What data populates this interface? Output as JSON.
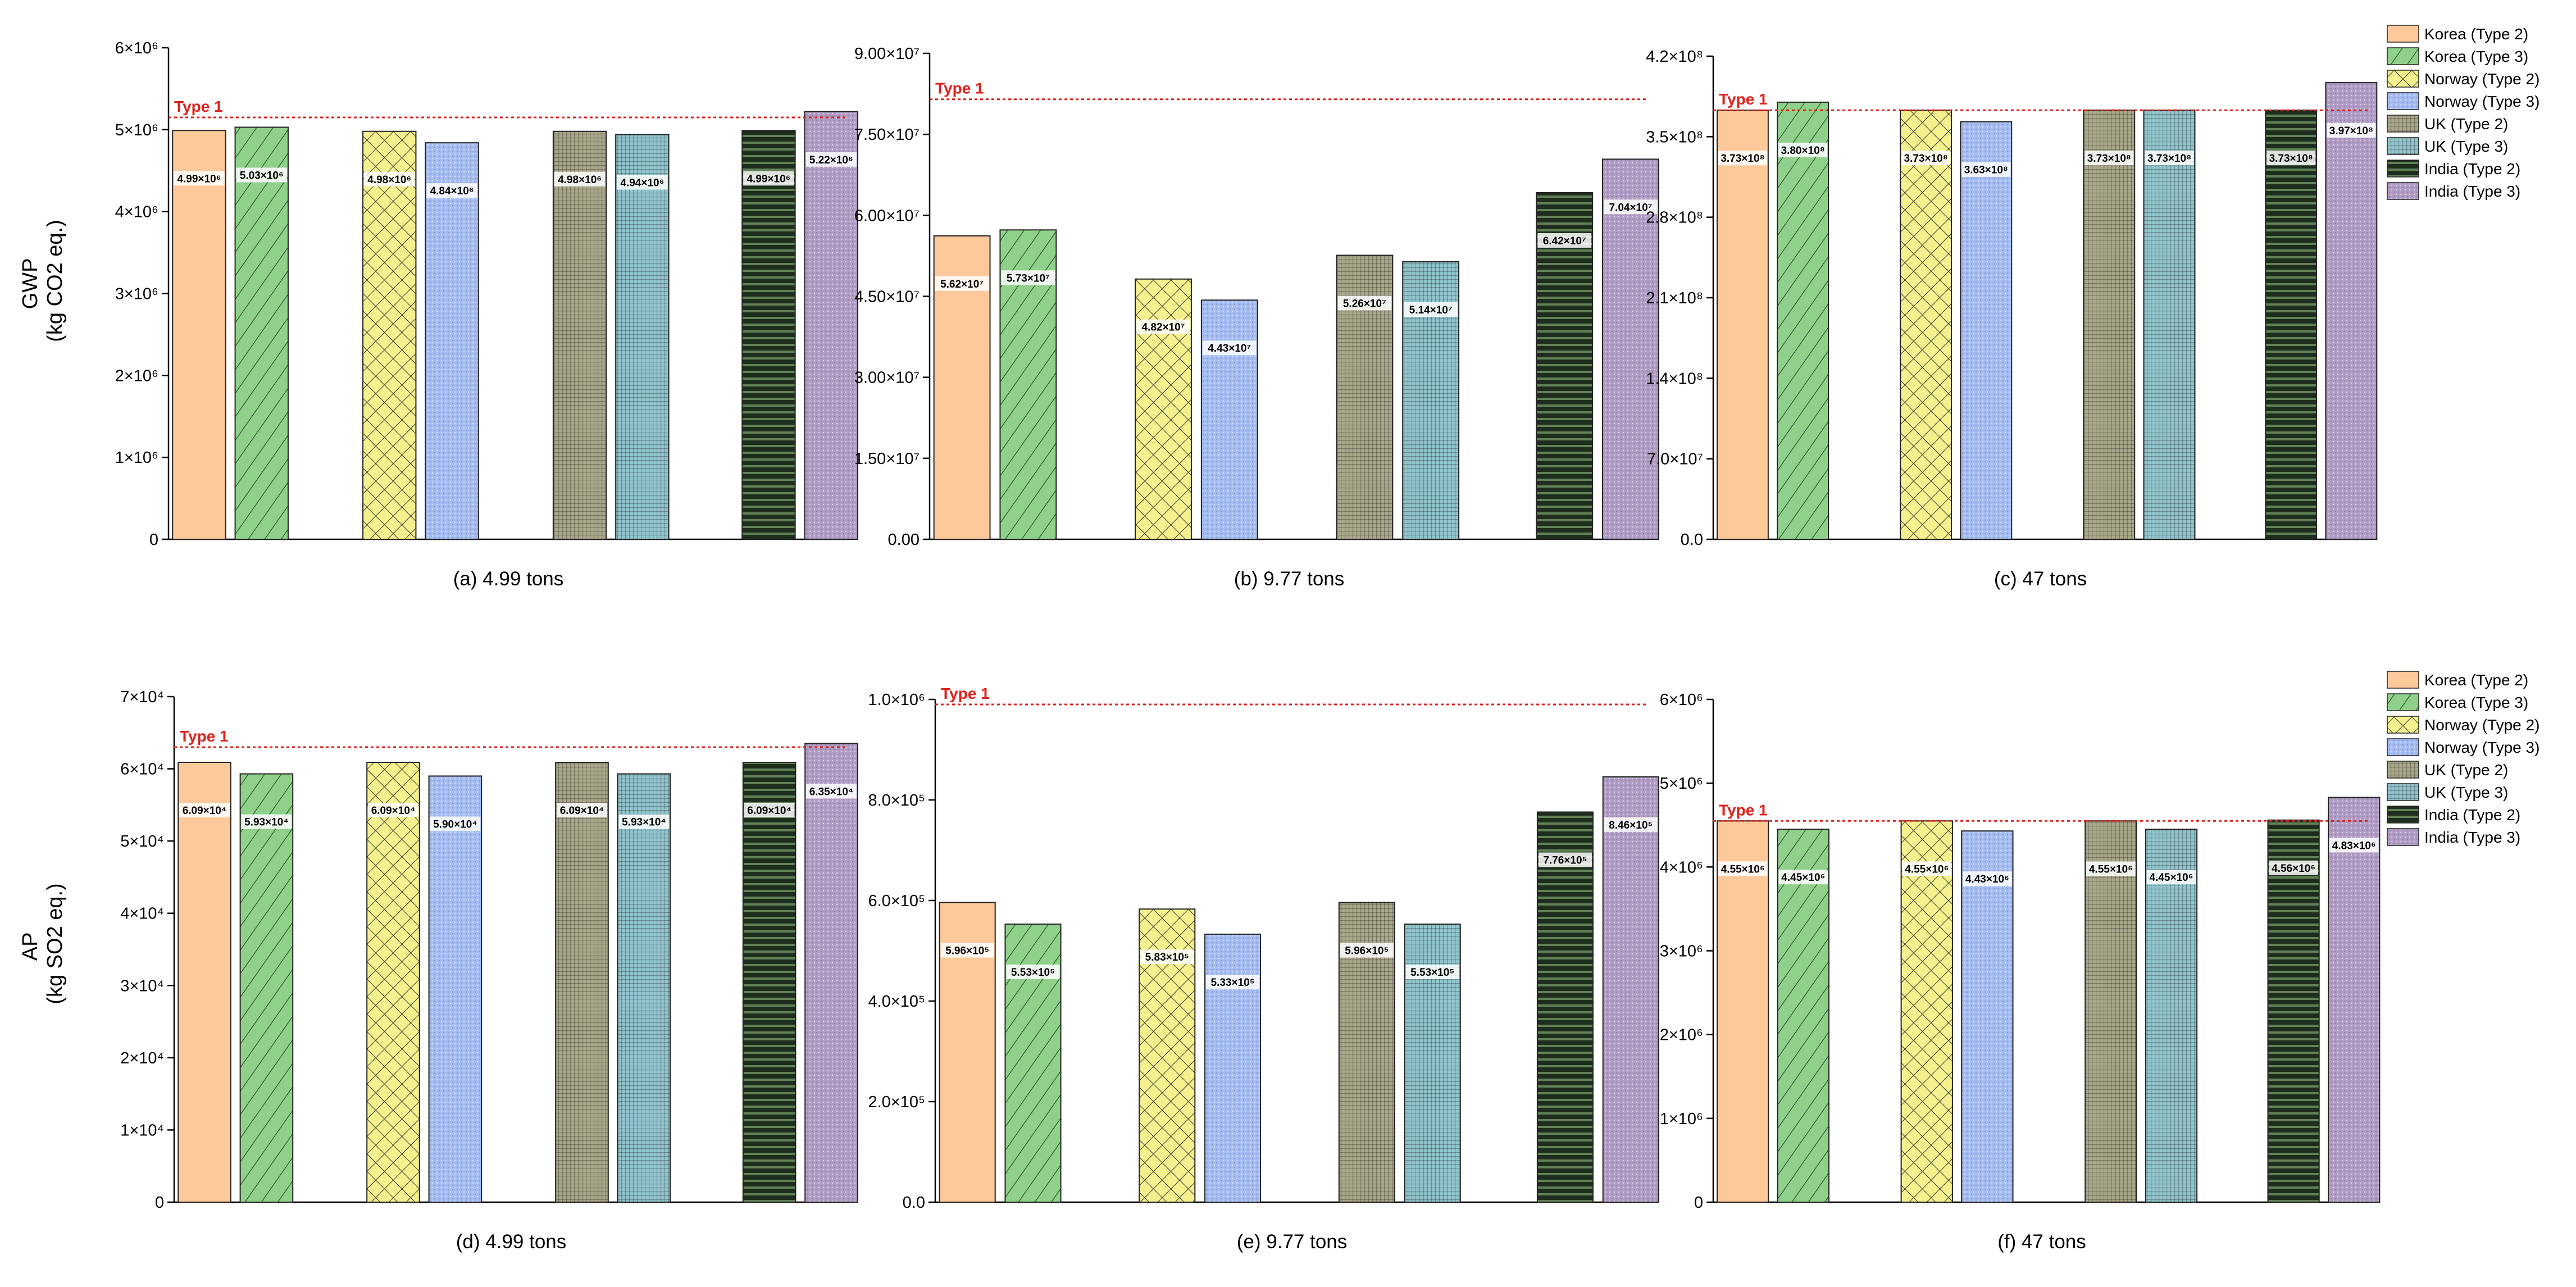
{
  "figure": {
    "rows": [
      {
        "ylabel_line1": "GWP",
        "ylabel_line2": "(kg CO2 eq.)"
      },
      {
        "ylabel_line1": "AP",
        "ylabel_line2": "(kg SO2 eq.)"
      }
    ]
  },
  "legend": {
    "entries": [
      {
        "label": "Korea (Type 2)",
        "color": "#fdc99b",
        "pattern": "solid"
      },
      {
        "label": "Korea (Type 3)",
        "color": "#8fd18b",
        "pattern": "diag"
      },
      {
        "label": "Norway (Type 2)",
        "color": "#f4f08e",
        "pattern": "cross"
      },
      {
        "label": "Norway (Type 3)",
        "color": "#a4bcf2",
        "pattern": "dots"
      },
      {
        "label": "UK (Type 2)",
        "color": "#a9a88a",
        "pattern": "grid"
      },
      {
        "label": "UK (Type 3)",
        "color": "#92c5cd",
        "pattern": "grid"
      },
      {
        "label": "India (Type 2)",
        "color": "#1d2f1c",
        "pattern": "hlines"
      },
      {
        "label": "India (Type 3)",
        "color": "#b09cc5",
        "pattern": "dots"
      }
    ]
  },
  "chart_data": [
    {
      "type": "bar",
      "subtitle": "(a) 4.99 tons",
      "metric": "GWP",
      "ylim": [
        0,
        6000000
      ],
      "yticks": [
        "0",
        "1×10⁶",
        "2×10⁶",
        "3×10⁶",
        "4×10⁶",
        "5×10⁶",
        "6×10⁶"
      ],
      "type1_label": "Type 1",
      "type1_value": 5150000,
      "categories": [
        "Korea (Type 2)",
        "Korea (Type 3)",
        "Norway (Type 2)",
        "Norway (Type 3)",
        "UK (Type 2)",
        "UK (Type 3)",
        "India (Type 2)",
        "India (Type 3)"
      ],
      "values": [
        4990000,
        5030000,
        4980000,
        4840000,
        4980000,
        4940000,
        4990000,
        5220000
      ],
      "labels": [
        "4.99×10⁶",
        "5.03×10⁶",
        "4.98×10⁶",
        "4.84×10⁶",
        "4.98×10⁶",
        "4.94×10⁶",
        "4.99×10⁶",
        "5.22×10⁶"
      ]
    },
    {
      "type": "bar",
      "subtitle": "(b) 9.77 tons",
      "metric": "GWP",
      "ylim": [
        0,
        90000000
      ],
      "yticks": [
        "0.00",
        "1.50×10⁷",
        "3.00×10⁷",
        "4.50×10⁷",
        "6.00×10⁷",
        "7.50×10⁷",
        "9.00×10⁷"
      ],
      "type1_label": "Type 1",
      "type1_value": 81500000,
      "categories": [
        "Korea (Type 2)",
        "Korea (Type 3)",
        "Norway (Type 2)",
        "Norway (Type 3)",
        "UK (Type 2)",
        "UK (Type 3)",
        "India (Type 2)",
        "India (Type 3)"
      ],
      "values": [
        56200000,
        57300000,
        48200000,
        44300000,
        52600000,
        51400000,
        64200000,
        70400000
      ],
      "labels": [
        "5.62×10⁷",
        "5.73×10⁷",
        "4.82×10⁷",
        "4.43×10⁷",
        "5.26×10⁷",
        "5.14×10⁷",
        "6.42×10⁷",
        "7.04×10⁷"
      ]
    },
    {
      "type": "bar",
      "subtitle": "(c) 47 tons",
      "metric": "GWP",
      "ylim": [
        0,
        420000000
      ],
      "yticks": [
        "0.0",
        "7.0×10⁷",
        "1.4×10⁸",
        "2.1×10⁸",
        "2.8×10⁸",
        "3.5×10⁸",
        "4.2×10⁸"
      ],
      "type1_label": "Type 1",
      "type1_value": 373000000,
      "categories": [
        "Korea (Type 2)",
        "Korea (Type 3)",
        "Norway (Type 2)",
        "Norway (Type 3)",
        "UK (Type 2)",
        "UK (Type 3)",
        "India (Type 2)",
        "India (Type 3)"
      ],
      "values": [
        373000000,
        380000000,
        373000000,
        363000000,
        373000000,
        373000000,
        373000000,
        397000000
      ],
      "labels": [
        "3.73×10⁸",
        "3.80×10⁸",
        "3.73×10⁸",
        "3.63×10⁸",
        "3.73×10⁸",
        "3.73×10⁸",
        "3.73×10⁸",
        "3.97×10⁸"
      ]
    },
    {
      "type": "bar",
      "subtitle": "(d) 4.99 tons",
      "metric": "AP",
      "ylim": [
        0,
        70000
      ],
      "yticks": [
        "0",
        "1×10⁴",
        "2×10⁴",
        "3×10⁴",
        "4×10⁴",
        "5×10⁴",
        "6×10⁴",
        "7×10⁴"
      ],
      "type1_label": "Type 1",
      "type1_value": 63000,
      "categories": [
        "Korea (Type 2)",
        "Korea (Type 3)",
        "Norway (Type 2)",
        "Norway (Type 3)",
        "UK (Type 2)",
        "UK (Type 3)",
        "India (Type 2)",
        "India (Type 3)"
      ],
      "values": [
        60900,
        59300,
        60900,
        59000,
        60900,
        59300,
        60900,
        63500
      ],
      "labels": [
        "6.09×10⁴",
        "5.93×10⁴",
        "6.09×10⁴",
        "5.90×10⁴",
        "6.09×10⁴",
        "5.93×10⁴",
        "6.09×10⁴",
        "6.35×10⁴"
      ]
    },
    {
      "type": "bar",
      "subtitle": "(e) 9.77 tons",
      "metric": "AP",
      "ylim": [
        0,
        1000000
      ],
      "yticks": [
        "0.0",
        "2.0×10⁵",
        "4.0×10⁵",
        "6.0×10⁵",
        "8.0×10⁵",
        "1.0×10⁶"
      ],
      "type1_label": "Type 1",
      "type1_value": 990000,
      "categories": [
        "Korea (Type 2)",
        "Korea (Type 3)",
        "Norway (Type 2)",
        "Norway (Type 3)",
        "UK (Type 2)",
        "UK (Type 3)",
        "India (Type 2)",
        "India (Type 3)"
      ],
      "values": [
        596000,
        553000,
        583000,
        533000,
        596000,
        553000,
        776000,
        846000
      ],
      "labels": [
        "5.96×10⁵",
        "5.53×10⁵",
        "5.83×10⁵",
        "5.33×10⁵",
        "5.96×10⁵",
        "5.53×10⁵",
        "7.76×10⁵",
        "8.46×10⁵"
      ]
    },
    {
      "type": "bar",
      "subtitle": "(f) 47 tons",
      "metric": "AP",
      "ylim": [
        0,
        6000000
      ],
      "yticks": [
        "0",
        "1×10⁶",
        "2×10⁶",
        "3×10⁶",
        "4×10⁶",
        "5×10⁶",
        "6×10⁶"
      ],
      "type1_label": "Type 1",
      "type1_value": 4550000,
      "categories": [
        "Korea (Type 2)",
        "Korea (Type 3)",
        "Norway (Type 2)",
        "Norway (Type 3)",
        "UK (Type 2)",
        "UK (Type 3)",
        "India (Type 2)",
        "India (Type 3)"
      ],
      "values": [
        4550000,
        4450000,
        4550000,
        4430000,
        4550000,
        4450000,
        4560000,
        4830000
      ],
      "labels": [
        "4.55×10⁶",
        "4.45×10⁶",
        "4.55×10⁶",
        "4.43×10⁶",
        "4.55×10⁶",
        "4.45×10⁶",
        "4.56×10⁶",
        "4.83×10⁶"
      ]
    }
  ]
}
